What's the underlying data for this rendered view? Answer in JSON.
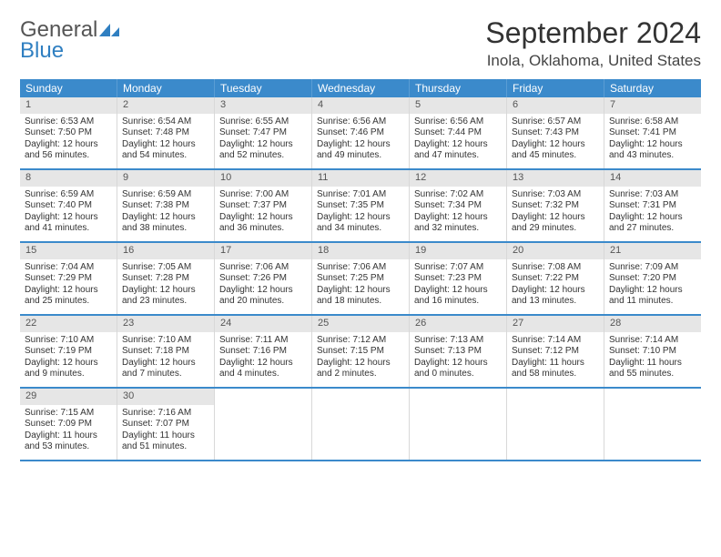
{
  "logo": {
    "line1": "General",
    "line2": "Blue"
  },
  "title": "September 2024",
  "location": "Inola, Oklahoma, United States",
  "colors": {
    "header_bg": "#3b8acb",
    "header_text": "#ffffff",
    "daynum_bg": "#e6e6e6",
    "row_divider": "#3b8acb",
    "cell_border": "#d8d8d8",
    "logo_blue": "#2f7fc1"
  },
  "day_headers": [
    "Sunday",
    "Monday",
    "Tuesday",
    "Wednesday",
    "Thursday",
    "Friday",
    "Saturday"
  ],
  "weeks": [
    [
      {
        "n": "1",
        "sr": "6:53 AM",
        "ss": "7:50 PM",
        "dl": "12 hours and 56 minutes."
      },
      {
        "n": "2",
        "sr": "6:54 AM",
        "ss": "7:48 PM",
        "dl": "12 hours and 54 minutes."
      },
      {
        "n": "3",
        "sr": "6:55 AM",
        "ss": "7:47 PM",
        "dl": "12 hours and 52 minutes."
      },
      {
        "n": "4",
        "sr": "6:56 AM",
        "ss": "7:46 PM",
        "dl": "12 hours and 49 minutes."
      },
      {
        "n": "5",
        "sr": "6:56 AM",
        "ss": "7:44 PM",
        "dl": "12 hours and 47 minutes."
      },
      {
        "n": "6",
        "sr": "6:57 AM",
        "ss": "7:43 PM",
        "dl": "12 hours and 45 minutes."
      },
      {
        "n": "7",
        "sr": "6:58 AM",
        "ss": "7:41 PM",
        "dl": "12 hours and 43 minutes."
      }
    ],
    [
      {
        "n": "8",
        "sr": "6:59 AM",
        "ss": "7:40 PM",
        "dl": "12 hours and 41 minutes."
      },
      {
        "n": "9",
        "sr": "6:59 AM",
        "ss": "7:38 PM",
        "dl": "12 hours and 38 minutes."
      },
      {
        "n": "10",
        "sr": "7:00 AM",
        "ss": "7:37 PM",
        "dl": "12 hours and 36 minutes."
      },
      {
        "n": "11",
        "sr": "7:01 AM",
        "ss": "7:35 PM",
        "dl": "12 hours and 34 minutes."
      },
      {
        "n": "12",
        "sr": "7:02 AM",
        "ss": "7:34 PM",
        "dl": "12 hours and 32 minutes."
      },
      {
        "n": "13",
        "sr": "7:03 AM",
        "ss": "7:32 PM",
        "dl": "12 hours and 29 minutes."
      },
      {
        "n": "14",
        "sr": "7:03 AM",
        "ss": "7:31 PM",
        "dl": "12 hours and 27 minutes."
      }
    ],
    [
      {
        "n": "15",
        "sr": "7:04 AM",
        "ss": "7:29 PM",
        "dl": "12 hours and 25 minutes."
      },
      {
        "n": "16",
        "sr": "7:05 AM",
        "ss": "7:28 PM",
        "dl": "12 hours and 23 minutes."
      },
      {
        "n": "17",
        "sr": "7:06 AM",
        "ss": "7:26 PM",
        "dl": "12 hours and 20 minutes."
      },
      {
        "n": "18",
        "sr": "7:06 AM",
        "ss": "7:25 PM",
        "dl": "12 hours and 18 minutes."
      },
      {
        "n": "19",
        "sr": "7:07 AM",
        "ss": "7:23 PM",
        "dl": "12 hours and 16 minutes."
      },
      {
        "n": "20",
        "sr": "7:08 AM",
        "ss": "7:22 PM",
        "dl": "12 hours and 13 minutes."
      },
      {
        "n": "21",
        "sr": "7:09 AM",
        "ss": "7:20 PM",
        "dl": "12 hours and 11 minutes."
      }
    ],
    [
      {
        "n": "22",
        "sr": "7:10 AM",
        "ss": "7:19 PM",
        "dl": "12 hours and 9 minutes."
      },
      {
        "n": "23",
        "sr": "7:10 AM",
        "ss": "7:18 PM",
        "dl": "12 hours and 7 minutes."
      },
      {
        "n": "24",
        "sr": "7:11 AM",
        "ss": "7:16 PM",
        "dl": "12 hours and 4 minutes."
      },
      {
        "n": "25",
        "sr": "7:12 AM",
        "ss": "7:15 PM",
        "dl": "12 hours and 2 minutes."
      },
      {
        "n": "26",
        "sr": "7:13 AM",
        "ss": "7:13 PM",
        "dl": "12 hours and 0 minutes."
      },
      {
        "n": "27",
        "sr": "7:14 AM",
        "ss": "7:12 PM",
        "dl": "11 hours and 58 minutes."
      },
      {
        "n": "28",
        "sr": "7:14 AM",
        "ss": "7:10 PM",
        "dl": "11 hours and 55 minutes."
      }
    ],
    [
      {
        "n": "29",
        "sr": "7:15 AM",
        "ss": "7:09 PM",
        "dl": "11 hours and 53 minutes."
      },
      {
        "n": "30",
        "sr": "7:16 AM",
        "ss": "7:07 PM",
        "dl": "11 hours and 51 minutes."
      },
      null,
      null,
      null,
      null,
      null
    ]
  ],
  "labels": {
    "sunrise": "Sunrise:",
    "sunset": "Sunset:",
    "daylight": "Daylight:"
  }
}
